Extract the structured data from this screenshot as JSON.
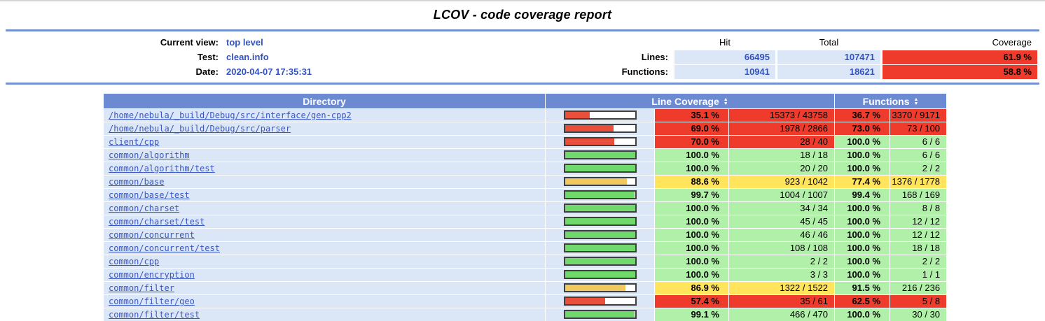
{
  "title": "LCOV - code coverage report",
  "header": {
    "fields": [
      {
        "label": "Current view:",
        "value": "top level"
      },
      {
        "label": "Test:",
        "value": "clean.info"
      },
      {
        "label": "Date:",
        "value": "2020-04-07 17:35:31"
      }
    ],
    "metrics": {
      "columns": [
        "Hit",
        "Total",
        "Coverage"
      ],
      "rows": [
        {
          "label": "Lines:",
          "hit": "66495",
          "total": "107471",
          "coverage": "61.9 %",
          "level": "lo"
        },
        {
          "label": "Functions:",
          "hit": "10941",
          "total": "18621",
          "coverage": "58.8 %",
          "level": "lo"
        }
      ]
    }
  },
  "table": {
    "headers": {
      "directory": "Directory",
      "line_coverage": "Line Coverage",
      "functions": "Functions",
      "sort_up": "▲",
      "sort_down": "▼"
    },
    "rows": [
      {
        "dir": "/home/nebula/_build/Debug/src/interface/gen-cpp2",
        "bar_pct": 35.1,
        "bar_level": "lo",
        "line_pct": "35.1 %",
        "line_count": "15373 / 43758",
        "line_level": "lo",
        "func_pct": "36.7 %",
        "func_count": "3370 / 9171",
        "func_level": "lo"
      },
      {
        "dir": "/home/nebula/_build/Debug/src/parser",
        "bar_pct": 69.0,
        "bar_level": "lo",
        "line_pct": "69.0 %",
        "line_count": "1978 / 2866",
        "line_level": "lo",
        "func_pct": "73.0 %",
        "func_count": "73 / 100",
        "func_level": "lo"
      },
      {
        "dir": "client/cpp",
        "bar_pct": 70.0,
        "bar_level": "lo",
        "line_pct": "70.0 %",
        "line_count": "28 / 40",
        "line_level": "lo",
        "func_pct": "100.0 %",
        "func_count": "6 / 6",
        "func_level": "hi"
      },
      {
        "dir": "common/algorithm",
        "bar_pct": 100,
        "bar_level": "hi",
        "line_pct": "100.0 %",
        "line_count": "18 / 18",
        "line_level": "hi",
        "func_pct": "100.0 %",
        "func_count": "6 / 6",
        "func_level": "hi"
      },
      {
        "dir": "common/algorithm/test",
        "bar_pct": 100,
        "bar_level": "hi",
        "line_pct": "100.0 %",
        "line_count": "20 / 20",
        "line_level": "hi",
        "func_pct": "100.0 %",
        "func_count": "2 / 2",
        "func_level": "hi"
      },
      {
        "dir": "common/base",
        "bar_pct": 88.6,
        "bar_level": "med",
        "line_pct": "88.6 %",
        "line_count": "923 / 1042",
        "line_level": "med",
        "func_pct": "77.4 %",
        "func_count": "1376 / 1778",
        "func_level": "med"
      },
      {
        "dir": "common/base/test",
        "bar_pct": 99.7,
        "bar_level": "hi",
        "line_pct": "99.7 %",
        "line_count": "1004 / 1007",
        "line_level": "hi",
        "func_pct": "99.4 %",
        "func_count": "168 / 169",
        "func_level": "hi"
      },
      {
        "dir": "common/charset",
        "bar_pct": 100,
        "bar_level": "hi",
        "line_pct": "100.0 %",
        "line_count": "34 / 34",
        "line_level": "hi",
        "func_pct": "100.0 %",
        "func_count": "8 / 8",
        "func_level": "hi"
      },
      {
        "dir": "common/charset/test",
        "bar_pct": 100,
        "bar_level": "hi",
        "line_pct": "100.0 %",
        "line_count": "45 / 45",
        "line_level": "hi",
        "func_pct": "100.0 %",
        "func_count": "12 / 12",
        "func_level": "hi"
      },
      {
        "dir": "common/concurrent",
        "bar_pct": 100,
        "bar_level": "hi",
        "line_pct": "100.0 %",
        "line_count": "46 / 46",
        "line_level": "hi",
        "func_pct": "100.0 %",
        "func_count": "12 / 12",
        "func_level": "hi"
      },
      {
        "dir": "common/concurrent/test",
        "bar_pct": 100,
        "bar_level": "hi",
        "line_pct": "100.0 %",
        "line_count": "108 / 108",
        "line_level": "hi",
        "func_pct": "100.0 %",
        "func_count": "18 / 18",
        "func_level": "hi"
      },
      {
        "dir": "common/cpp",
        "bar_pct": 100,
        "bar_level": "hi",
        "line_pct": "100.0 %",
        "line_count": "2 / 2",
        "line_level": "hi",
        "func_pct": "100.0 %",
        "func_count": "2 / 2",
        "func_level": "hi"
      },
      {
        "dir": "common/encryption",
        "bar_pct": 100,
        "bar_level": "hi",
        "line_pct": "100.0 %",
        "line_count": "3 / 3",
        "line_level": "hi",
        "func_pct": "100.0 %",
        "func_count": "1 / 1",
        "func_level": "hi"
      },
      {
        "dir": "common/filter",
        "bar_pct": 86.9,
        "bar_level": "med",
        "line_pct": "86.9 %",
        "line_count": "1322 / 1522",
        "line_level": "med",
        "func_pct": "91.5 %",
        "func_count": "216 / 236",
        "func_level": "hi"
      },
      {
        "dir": "common/filter/geo",
        "bar_pct": 57.4,
        "bar_level": "lo",
        "line_pct": "57.4 %",
        "line_count": "35 / 61",
        "line_level": "lo",
        "func_pct": "62.5 %",
        "func_count": "5 / 8",
        "func_level": "lo"
      },
      {
        "dir": "common/filter/test",
        "bar_pct": 99.1,
        "bar_level": "hi",
        "line_pct": "99.1 %",
        "line_count": "466 / 470",
        "line_level": "hi",
        "func_pct": "100.0 %",
        "func_count": "30 / 30",
        "func_level": "hi"
      },
      {
        "dir": "",
        "bar_pct": null,
        "bar_level": "lo",
        "line_pct": "",
        "line_count": "",
        "line_level": "lo",
        "func_pct": "",
        "func_count": "",
        "func_level": "med"
      }
    ]
  },
  "colors": {
    "table_head": "#6c8ad2",
    "rule": "#7290d2",
    "row_bg": "#dbe6f7",
    "low": "#ee3b2b",
    "medium": "#ffe45c",
    "high": "#b0f0a8",
    "bar_low": "#e8503c",
    "bar_medium": "#f0ca5f",
    "bar_high": "#6fd96b",
    "link": "#3a57c2"
  }
}
